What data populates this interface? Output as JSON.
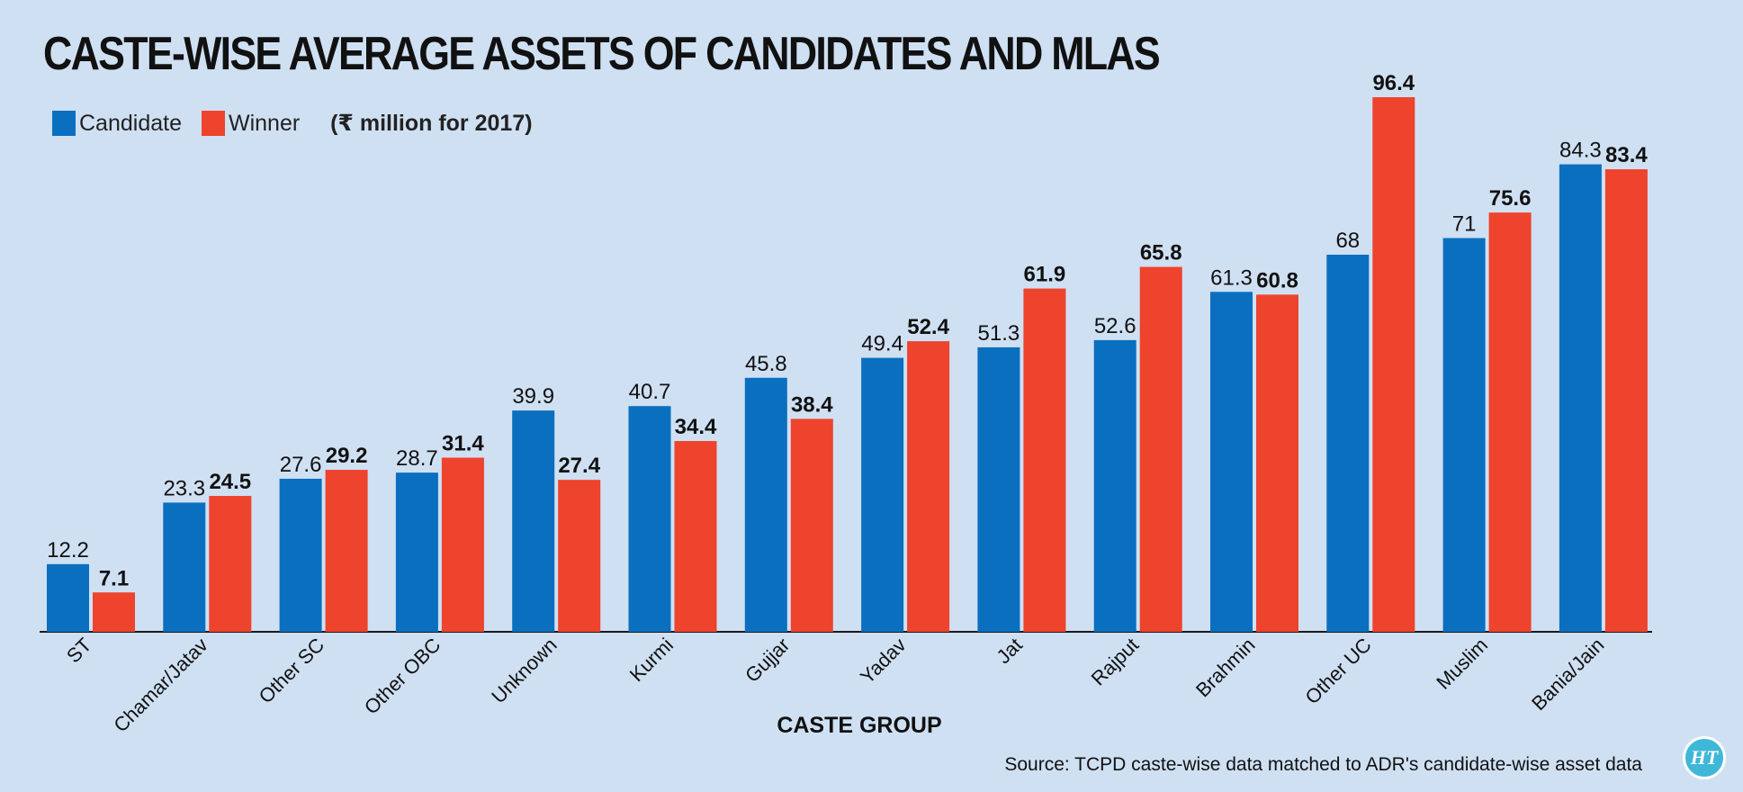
{
  "header": {
    "title": "CASTE-WISE AVERAGE ASSETS OF CANDIDATES AND MLAS",
    "units": "(₹ million for 2017)"
  },
  "footer": {
    "source": "Source: TCPD caste-wise data matched to ADR's candidate-wise asset data",
    "logo_text": "HT"
  },
  "colors": {
    "candidate": "#0b6fbf",
    "winner": "#ee432d",
    "background": "#cfe0f3"
  },
  "chart_data": {
    "type": "bar",
    "title": "CASTE-WISE AVERAGE ASSETS OF CANDIDATES AND MLAS",
    "xlabel": "CASTE GROUP",
    "ylabel": "",
    "ylim": [
      0,
      100
    ],
    "grid": false,
    "legend_position": "top-left",
    "categories": [
      "ST",
      "Chamar/Jatav",
      "Other SC",
      "Other OBC",
      "Unknown",
      "Kurmi",
      "Gujjar",
      "Yadav",
      "Jat",
      "Rajput",
      "Brahmin",
      "Other UC",
      "Muslim",
      "Bania/Jain"
    ],
    "series": [
      {
        "name": "Candidate",
        "values": [
          12.2,
          23.3,
          27.6,
          28.7,
          39.9,
          40.7,
          45.8,
          49.4,
          51.3,
          52.6,
          61.3,
          68,
          71,
          84.3
        ]
      },
      {
        "name": "Winner",
        "values": [
          7.1,
          24.5,
          29.2,
          31.4,
          27.4,
          34.4,
          38.4,
          52.4,
          61.9,
          65.8,
          60.8,
          96.4,
          75.6,
          83.4
        ]
      }
    ]
  }
}
